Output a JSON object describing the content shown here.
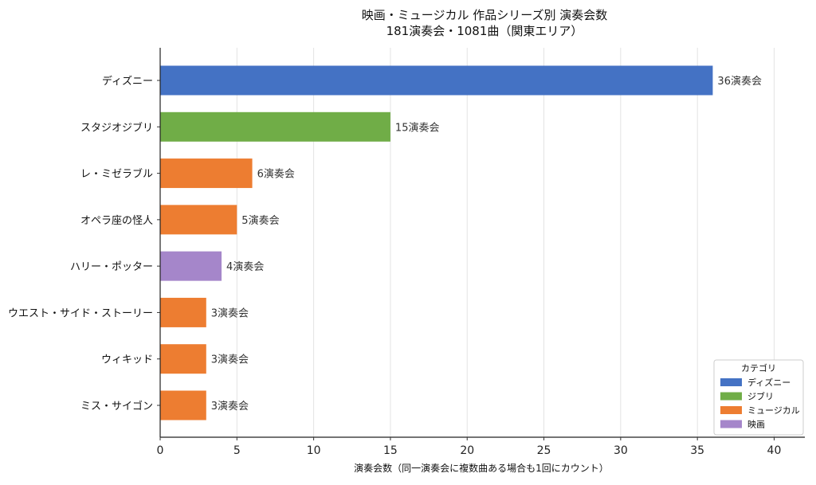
{
  "chart_data": {
    "type": "bar",
    "orientation": "horizontal",
    "title": "映画・ミュージカル 作品シリーズ別 演奏会数",
    "subtitle": "181演奏会・1081曲（関東エリア）",
    "xlabel": "演奏会数（同一演奏会に複数曲ある場合も1回にカウント）",
    "ylabel": "",
    "xlim": [
      0,
      42
    ],
    "xticks": [
      0,
      5,
      10,
      15,
      20,
      25,
      30,
      35,
      40
    ],
    "grid": true,
    "legend": {
      "title": "カテゴリ",
      "placement": "bottom-right",
      "entries": [
        {
          "name": "ディズニー",
          "color": "#4472C4"
        },
        {
          "name": "ジブリ",
          "color": "#70AD47"
        },
        {
          "name": "ミュージカル",
          "color": "#ED7D31"
        },
        {
          "name": "映画",
          "color": "#A586CA"
        }
      ]
    },
    "bars": [
      {
        "category": "ディズニー",
        "value": 36,
        "label": "36演奏会",
        "group": "ディズニー"
      },
      {
        "category": "スタジオジブリ",
        "value": 15,
        "label": "15演奏会",
        "group": "ジブリ"
      },
      {
        "category": "レ・ミゼラブル",
        "value": 6,
        "label": "6演奏会",
        "group": "ミュージカル"
      },
      {
        "category": "オペラ座の怪人",
        "value": 5,
        "label": "5演奏会",
        "group": "ミュージカル"
      },
      {
        "category": "ハリー・ポッター",
        "value": 4,
        "label": "4演奏会",
        "group": "映画"
      },
      {
        "category": "ウエスト・サイド・ストーリー",
        "value": 3,
        "label": "3演奏会",
        "group": "ミュージカル"
      },
      {
        "category": "ウィキッド",
        "value": 3,
        "label": "3演奏会",
        "group": "ミュージカル"
      },
      {
        "category": "ミス・サイゴン",
        "value": 3,
        "label": "3演奏会",
        "group": "ミュージカル"
      }
    ]
  }
}
